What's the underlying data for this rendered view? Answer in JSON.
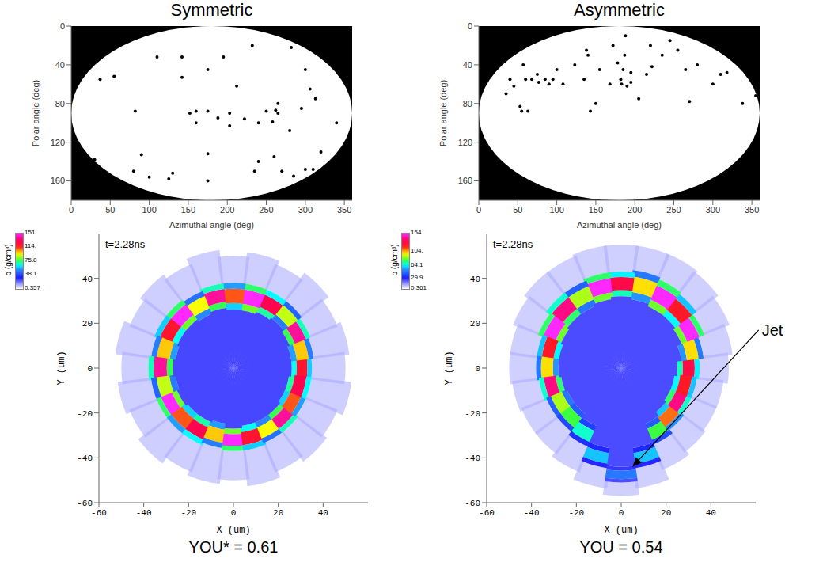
{
  "chart_data": [
    {
      "type": "scatter",
      "title": "Symmetric",
      "x_label": "Azimuthal angle (deg)",
      "y_label": "Polar angle (deg)",
      "xlim": [
        0,
        360
      ],
      "xticks": [
        0,
        50,
        100,
        150,
        200,
        250,
        300,
        350
      ],
      "ylim": [
        0,
        180
      ],
      "yticks": [
        0,
        40,
        80,
        120,
        160
      ],
      "color": "#000000",
      "marker": "circle",
      "x": [
        37,
        55,
        82,
        110,
        142,
        142,
        175,
        195,
        212,
        232,
        282,
        300,
        313,
        306,
        280,
        265,
        262,
        258,
        265,
        250,
        240,
        222,
        203,
        203,
        188,
        175,
        160,
        160,
        152,
        90,
        80,
        100,
        125,
        175,
        175,
        235,
        240,
        260,
        270,
        300,
        320,
        310,
        285,
        340,
        30,
        295,
        130
      ],
      "values": [
        55,
        52,
        88,
        32,
        32,
        53,
        45,
        32,
        62,
        20,
        22,
        45,
        75,
        65,
        108,
        80,
        87,
        99,
        90,
        88,
        100,
        96,
        90,
        103,
        95,
        88,
        88,
        100,
        90,
        133,
        150,
        156,
        158,
        132,
        160,
        150,
        140,
        135,
        150,
        148,
        130,
        148,
        155,
        100,
        138,
        85,
        152
      ]
    },
    {
      "type": "scatter",
      "title": "Asymmetric",
      "x_label": "Azimuthal angle (deg)",
      "y_label": "Polar angle (deg)",
      "xlim": [
        0,
        360
      ],
      "xticks": [
        0,
        50,
        100,
        150,
        200,
        250,
        300,
        350
      ],
      "ylim": [
        0,
        180
      ],
      "yticks": [
        0,
        40,
        80,
        120,
        160
      ],
      "color": "#000000",
      "marker": "circle",
      "x": [
        45,
        53,
        55,
        63,
        57,
        60,
        68,
        75,
        77,
        85,
        90,
        95,
        100,
        108,
        123,
        135,
        138,
        140,
        143,
        150,
        155,
        168,
        172,
        178,
        182,
        183,
        185,
        187,
        188,
        190,
        195,
        195,
        205,
        215,
        222,
        220,
        235,
        245,
        255,
        265,
        270,
        280,
        300,
        310,
        318,
        338,
        355,
        40,
        35
      ],
      "values": [
        62,
        83,
        88,
        88,
        40,
        55,
        55,
        50,
        58,
        55,
        60,
        55,
        45,
        60,
        40,
        55,
        25,
        30,
        88,
        80,
        45,
        60,
        20,
        38,
        55,
        60,
        45,
        30,
        10,
        62,
        58,
        48,
        75,
        50,
        42,
        20,
        30,
        15,
        25,
        45,
        78,
        40,
        60,
        50,
        48,
        80,
        72,
        55,
        70
      ]
    },
    {
      "type": "density_map",
      "time_label": "t=2.28ns",
      "caption": "YOU* = 0.61",
      "x_label": "X (um)",
      "y_label": "Y (um)",
      "xlim": [
        -60,
        60
      ],
      "xticks": [
        -60,
        -40,
        -20,
        0,
        20,
        40
      ],
      "ylim": [
        -60,
        60
      ],
      "yticks": [
        -60,
        -40,
        -20,
        0,
        20,
        40
      ],
      "colorbar": {
        "label": "ρ (g/cm³)",
        "range": [
          0.357,
          151
        ],
        "ticks": [
          0.357,
          38.1,
          75.8,
          {
            "value": 114,
            "label": "114."
          },
          {
            "value": 151,
            "label": "151."
          }
        ]
      },
      "shell": {
        "angle": [
          0,
          15,
          30,
          45,
          60,
          75,
          90,
          105,
          120,
          135,
          150,
          165,
          180,
          195,
          210,
          225,
          240,
          255,
          270,
          285,
          300,
          315,
          330,
          345
        ],
        "inner_radius": [
          26,
          26,
          27,
          28,
          27,
          26,
          26,
          27,
          26,
          27,
          27,
          26,
          27,
          26,
          27,
          26,
          26,
          25,
          27,
          26,
          26,
          26,
          25,
          25
        ],
        "outer_radius": [
          35,
          36,
          37,
          38,
          38,
          38,
          38,
          38,
          37,
          38,
          38,
          37,
          38,
          37,
          37,
          37,
          37,
          36,
          37,
          37,
          36,
          36,
          35,
          35
        ],
        "density": [
          120,
          100,
          140,
          90,
          130,
          151,
          110,
          140,
          95,
          151,
          120,
          100,
          140,
          90,
          151,
          110,
          130,
          100,
          151,
          120,
          95,
          140,
          110,
          130
        ],
        "halo_radius": [
          50,
          52,
          50,
          53,
          50,
          52,
          50,
          53,
          50,
          52,
          50,
          53,
          50,
          52,
          50,
          53,
          50,
          52,
          50,
          53,
          50,
          52,
          50,
          53
        ]
      },
      "core_density": 25,
      "halo_density": 12
    },
    {
      "type": "density_map",
      "time_label": "t=2.28ns",
      "caption": "YOU = 0.54",
      "x_label": "X (um)",
      "y_label": "Y (um)",
      "xlim": [
        -60,
        60
      ],
      "xticks": [
        -60,
        -40,
        -20,
        0,
        20,
        40
      ],
      "ylim": [
        -60,
        60
      ],
      "yticks": [
        -60,
        -40,
        -20,
        0,
        20,
        40
      ],
      "colorbar": {
        "label": "ρ (g/cm³)",
        "range": [
          0.361,
          154
        ],
        "ticks": [
          0.361,
          29.9,
          64.1,
          {
            "value": 104,
            "label": "104."
          },
          {
            "value": 154,
            "label": "154."
          }
        ]
      },
      "shell": {
        "angle": [
          0,
          15,
          30,
          45,
          60,
          75,
          90,
          105,
          120,
          135,
          150,
          165,
          180,
          195,
          210,
          225,
          240,
          255,
          270,
          285,
          300,
          315,
          330,
          345
        ],
        "inner_radius": [
          25,
          27,
          29,
          30,
          30,
          31,
          32,
          31,
          30,
          30,
          29,
          28,
          28,
          27,
          26,
          26,
          28,
          36,
          44,
          36,
          27,
          25,
          24,
          24
        ],
        "outer_radius": [
          35,
          37,
          40,
          42,
          43,
          44,
          43,
          43,
          42,
          42,
          40,
          38,
          38,
          37,
          36,
          36,
          38,
          45,
          51,
          45,
          37,
          35,
          34,
          34
        ],
        "density": [
          130,
          100,
          154,
          120,
          154,
          100,
          130,
          154,
          90,
          140,
          154,
          120,
          100,
          140,
          90,
          80,
          70,
          60,
          50,
          60,
          80,
          110,
          140,
          120
        ],
        "halo_radius": [
          48,
          50,
          52,
          54,
          55,
          55,
          55,
          55,
          54,
          54,
          52,
          50,
          50,
          49,
          48,
          48,
          50,
          54,
          57,
          54,
          49,
          47,
          46,
          46
        ]
      },
      "core_density": 25,
      "halo_density": 12,
      "annotations": [
        {
          "text": "Jet",
          "x": 5,
          "y": -44
        }
      ]
    }
  ]
}
